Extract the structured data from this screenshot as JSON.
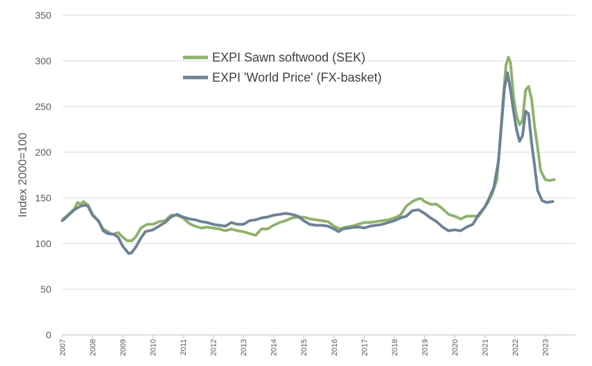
{
  "chart_data": {
    "type": "line",
    "title": "",
    "xlabel": "",
    "ylabel": "Index 2000=100",
    "ylim": [
      0,
      350
    ],
    "yticks": [
      0,
      50,
      100,
      150,
      200,
      250,
      300,
      350
    ],
    "xlim": [
      2007.0,
      2024.0
    ],
    "xtick_labels": [
      "2007",
      "2008",
      "2009",
      "2010",
      "2011",
      "2012",
      "2013",
      "2014",
      "2015",
      "2016",
      "2017",
      "2018",
      "2019",
      "2020",
      "2021",
      "2022",
      "2023"
    ],
    "grid": "horizontal",
    "legend_position": "top-center",
    "series": [
      {
        "name": "EXPI Sawn softwood (SEK)",
        "color": "#8fb26b",
        "points": [
          [
            2007.0,
            126
          ],
          [
            2007.2,
            132
          ],
          [
            2007.4,
            138
          ],
          [
            2007.5,
            145
          ],
          [
            2007.6,
            143
          ],
          [
            2007.7,
            146
          ],
          [
            2007.85,
            142
          ],
          [
            2008.0,
            132
          ],
          [
            2008.2,
            124
          ],
          [
            2008.35,
            116
          ],
          [
            2008.5,
            113
          ],
          [
            2008.65,
            110
          ],
          [
            2008.85,
            112
          ],
          [
            2009.0,
            107
          ],
          [
            2009.15,
            103
          ],
          [
            2009.3,
            103
          ],
          [
            2009.45,
            108
          ],
          [
            2009.6,
            117
          ],
          [
            2009.8,
            121
          ],
          [
            2010.0,
            121
          ],
          [
            2010.2,
            124
          ],
          [
            2010.4,
            125
          ],
          [
            2010.6,
            131
          ],
          [
            2010.8,
            131
          ],
          [
            2011.0,
            128
          ],
          [
            2011.2,
            122
          ],
          [
            2011.4,
            119
          ],
          [
            2011.6,
            117
          ],
          [
            2011.8,
            118
          ],
          [
            2012.0,
            117
          ],
          [
            2012.2,
            116
          ],
          [
            2012.4,
            114
          ],
          [
            2012.6,
            116
          ],
          [
            2012.8,
            114
          ],
          [
            2013.0,
            113
          ],
          [
            2013.2,
            111
          ],
          [
            2013.4,
            109
          ],
          [
            2013.6,
            116
          ],
          [
            2013.8,
            116
          ],
          [
            2014.0,
            120
          ],
          [
            2014.2,
            123
          ],
          [
            2014.4,
            125
          ],
          [
            2014.6,
            128
          ],
          [
            2014.8,
            129
          ],
          [
            2015.0,
            129
          ],
          [
            2015.2,
            127
          ],
          [
            2015.4,
            126
          ],
          [
            2015.6,
            125
          ],
          [
            2015.8,
            124
          ],
          [
            2016.0,
            119
          ],
          [
            2016.2,
            116
          ],
          [
            2016.4,
            118
          ],
          [
            2016.6,
            119
          ],
          [
            2016.8,
            121
          ],
          [
            2017.0,
            123
          ],
          [
            2017.2,
            123
          ],
          [
            2017.4,
            124
          ],
          [
            2017.6,
            125
          ],
          [
            2017.8,
            126
          ],
          [
            2018.0,
            128
          ],
          [
            2018.2,
            131
          ],
          [
            2018.4,
            141
          ],
          [
            2018.6,
            146
          ],
          [
            2018.8,
            149
          ],
          [
            2018.9,
            149
          ],
          [
            2019.0,
            146
          ],
          [
            2019.2,
            143
          ],
          [
            2019.4,
            143
          ],
          [
            2019.6,
            138
          ],
          [
            2019.8,
            132
          ],
          [
            2020.0,
            130
          ],
          [
            2020.2,
            127
          ],
          [
            2020.4,
            130
          ],
          [
            2020.6,
            130
          ],
          [
            2020.8,
            130
          ],
          [
            2021.0,
            140
          ],
          [
            2021.1,
            145
          ],
          [
            2021.25,
            155
          ],
          [
            2021.4,
            170
          ],
          [
            2021.5,
            210
          ],
          [
            2021.6,
            255
          ],
          [
            2021.7,
            295
          ],
          [
            2021.78,
            304
          ],
          [
            2021.85,
            298
          ],
          [
            2021.95,
            260
          ],
          [
            2022.05,
            240
          ],
          [
            2022.15,
            230
          ],
          [
            2022.25,
            235
          ],
          [
            2022.35,
            268
          ],
          [
            2022.45,
            272
          ],
          [
            2022.55,
            258
          ],
          [
            2022.65,
            228
          ],
          [
            2022.75,
            205
          ],
          [
            2022.85,
            180
          ],
          [
            2023.0,
            170
          ],
          [
            2023.15,
            169
          ],
          [
            2023.3,
            170
          ]
        ]
      },
      {
        "name": "EXPI 'World Price' (FX-basket)",
        "color": "#6d8296",
        "points": [
          [
            2007.0,
            125
          ],
          [
            2007.2,
            131
          ],
          [
            2007.4,
            137
          ],
          [
            2007.6,
            141
          ],
          [
            2007.75,
            142
          ],
          [
            2007.85,
            141
          ],
          [
            2008.0,
            131
          ],
          [
            2008.2,
            125
          ],
          [
            2008.35,
            114
          ],
          [
            2008.5,
            111
          ],
          [
            2008.7,
            110
          ],
          [
            2008.85,
            107
          ],
          [
            2009.0,
            97
          ],
          [
            2009.1,
            93
          ],
          [
            2009.2,
            89
          ],
          [
            2009.3,
            90
          ],
          [
            2009.45,
            97
          ],
          [
            2009.6,
            106
          ],
          [
            2009.75,
            113
          ],
          [
            2010.0,
            115
          ],
          [
            2010.2,
            119
          ],
          [
            2010.4,
            123
          ],
          [
            2010.6,
            129
          ],
          [
            2010.8,
            132
          ],
          [
            2011.0,
            129
          ],
          [
            2011.2,
            127
          ],
          [
            2011.4,
            126
          ],
          [
            2011.6,
            124
          ],
          [
            2011.8,
            123
          ],
          [
            2012.0,
            121
          ],
          [
            2012.2,
            120
          ],
          [
            2012.4,
            119
          ],
          [
            2012.6,
            123
          ],
          [
            2012.8,
            121
          ],
          [
            2013.0,
            121
          ],
          [
            2013.2,
            125
          ],
          [
            2013.4,
            126
          ],
          [
            2013.6,
            128
          ],
          [
            2013.8,
            129
          ],
          [
            2014.0,
            131
          ],
          [
            2014.2,
            132
          ],
          [
            2014.4,
            133
          ],
          [
            2014.6,
            132
          ],
          [
            2014.8,
            130
          ],
          [
            2015.0,
            125
          ],
          [
            2015.2,
            121
          ],
          [
            2015.4,
            120
          ],
          [
            2015.6,
            120
          ],
          [
            2015.8,
            119
          ],
          [
            2016.0,
            116
          ],
          [
            2016.15,
            113
          ],
          [
            2016.3,
            116
          ],
          [
            2016.5,
            117
          ],
          [
            2016.7,
            118
          ],
          [
            2016.85,
            118
          ],
          [
            2017.0,
            117
          ],
          [
            2017.2,
            119
          ],
          [
            2017.4,
            120
          ],
          [
            2017.6,
            121
          ],
          [
            2017.8,
            123
          ],
          [
            2018.0,
            125
          ],
          [
            2018.2,
            128
          ],
          [
            2018.4,
            130
          ],
          [
            2018.6,
            136
          ],
          [
            2018.8,
            137
          ],
          [
            2019.0,
            133
          ],
          [
            2019.2,
            128
          ],
          [
            2019.4,
            124
          ],
          [
            2019.6,
            118
          ],
          [
            2019.8,
            114
          ],
          [
            2020.0,
            115
          ],
          [
            2020.2,
            114
          ],
          [
            2020.4,
            118
          ],
          [
            2020.6,
            121
          ],
          [
            2020.8,
            132
          ],
          [
            2021.0,
            140
          ],
          [
            2021.15,
            150
          ],
          [
            2021.3,
            162
          ],
          [
            2021.45,
            190
          ],
          [
            2021.55,
            230
          ],
          [
            2021.65,
            270
          ],
          [
            2021.75,
            287
          ],
          [
            2021.85,
            268
          ],
          [
            2021.95,
            245
          ],
          [
            2022.05,
            225
          ],
          [
            2022.15,
            212
          ],
          [
            2022.25,
            218
          ],
          [
            2022.35,
            245
          ],
          [
            2022.45,
            242
          ],
          [
            2022.55,
            210
          ],
          [
            2022.65,
            185
          ],
          [
            2022.75,
            158
          ],
          [
            2022.9,
            147
          ],
          [
            2023.05,
            145
          ],
          [
            2023.25,
            146
          ]
        ]
      }
    ]
  }
}
